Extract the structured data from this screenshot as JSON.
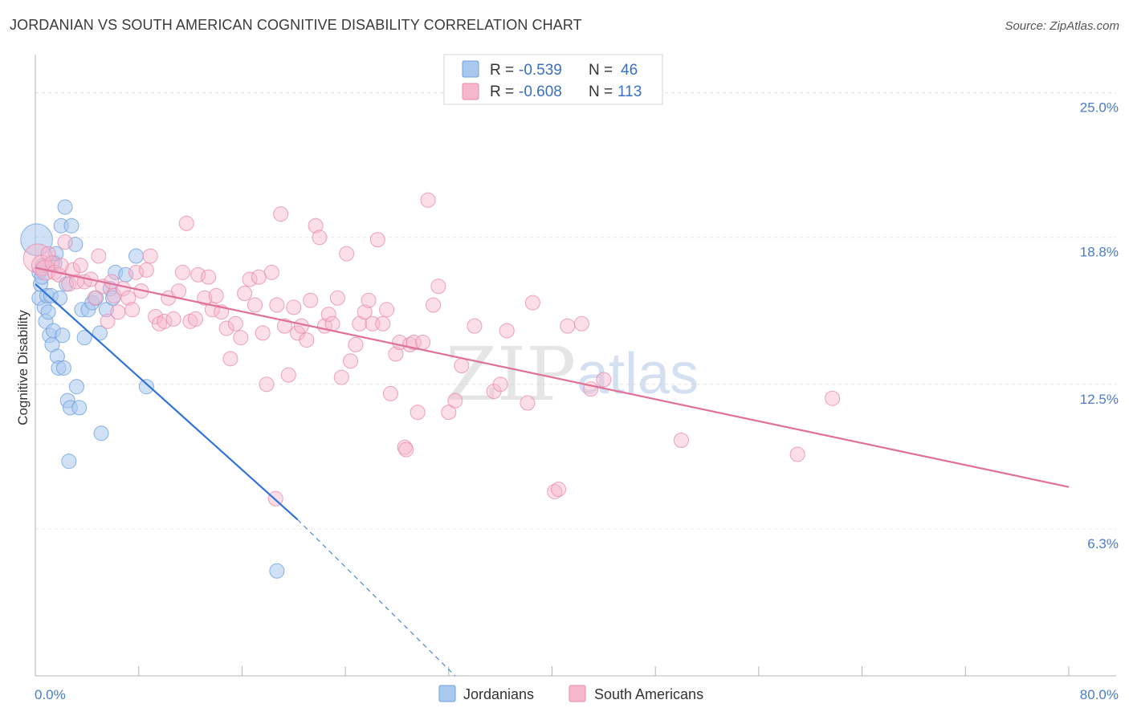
{
  "header": {
    "title": "JORDANIAN VS SOUTH AMERICAN COGNITIVE DISABILITY CORRELATION CHART",
    "source": "Source: ZipAtlas.com"
  },
  "legend": {
    "rows": [
      {
        "r_label": "R =",
        "r_value": "-0.539",
        "n_label": "N =",
        "n_value": "46",
        "color": "#a9c8ef"
      },
      {
        "r_label": "R =",
        "r_value": "-0.608",
        "n_label": "N =",
        "n_value": "113",
        "color": "#f6b6cb"
      }
    ]
  },
  "bottom_legend": {
    "items": [
      {
        "label": "Jordanians",
        "color": "#a9c8ef"
      },
      {
        "label": "South Americans",
        "color": "#f6b6cb"
      }
    ]
  },
  "watermark": {
    "zip": "ZIP",
    "atlas": "atlas"
  },
  "chart_data": {
    "type": "scatter",
    "ylabel": "Cognitive Disability",
    "xlim": [
      0,
      80
    ],
    "ylim": [
      0,
      26.5
    ],
    "x_tick_labels": [
      {
        "value": 0,
        "label": "0.0%"
      },
      {
        "value": 80,
        "label": "80.0%"
      }
    ],
    "y_tick_labels": [
      {
        "value": 6.3,
        "label": "6.3%"
      },
      {
        "value": 12.5,
        "label": "12.5%"
      },
      {
        "value": 18.8,
        "label": "18.8%"
      },
      {
        "value": 25.0,
        "label": "25.0%"
      }
    ],
    "grid": true,
    "legend_position": "top-center",
    "series": [
      {
        "name": "Jordanians",
        "color": "#a9c8ef",
        "stroke": "#6e9fdd",
        "trend": {
          "x0": 0,
          "y0": 16.8,
          "x1": 20.3,
          "y1": 6.7,
          "dash_to_x": 32.5,
          "dash_to_y": 0
        },
        "trend_color": "#2f72d8",
        "points": [
          [
            0.1,
            18.7
          ],
          [
            0.3,
            17.3
          ],
          [
            0.4,
            16.8
          ],
          [
            0.3,
            16.2
          ],
          [
            0.6,
            17.6
          ],
          [
            0.7,
            15.8
          ],
          [
            0.8,
            15.2
          ],
          [
            0.9,
            16.3
          ],
          [
            1.0,
            15.6
          ],
          [
            1.1,
            14.6
          ],
          [
            1.2,
            16.3
          ],
          [
            1.3,
            14.2
          ],
          [
            1.4,
            14.8
          ],
          [
            1.5,
            17.7
          ],
          [
            1.6,
            18.1
          ],
          [
            1.7,
            13.7
          ],
          [
            1.8,
            13.2
          ],
          [
            1.9,
            16.2
          ],
          [
            2.0,
            19.3
          ],
          [
            2.1,
            14.6
          ],
          [
            2.2,
            13.2
          ],
          [
            2.3,
            20.1
          ],
          [
            2.4,
            16.8
          ],
          [
            2.5,
            11.8
          ],
          [
            2.6,
            9.2
          ],
          [
            2.7,
            11.5
          ],
          [
            2.8,
            19.3
          ],
          [
            3.1,
            18.5
          ],
          [
            3.2,
            12.4
          ],
          [
            3.4,
            11.5
          ],
          [
            3.6,
            15.7
          ],
          [
            3.8,
            14.5
          ],
          [
            4.1,
            15.7
          ],
          [
            4.4,
            16.0
          ],
          [
            4.7,
            16.2
          ],
          [
            5.0,
            14.7
          ],
          [
            5.1,
            10.4
          ],
          [
            5.5,
            15.7
          ],
          [
            5.8,
            16.6
          ],
          [
            6.0,
            16.2
          ],
          [
            6.2,
            17.3
          ],
          [
            7.0,
            17.2
          ],
          [
            7.8,
            18.0
          ],
          [
            8.6,
            12.4
          ],
          [
            18.7,
            4.5
          ],
          [
            0.5,
            17.1
          ]
        ],
        "sizes": [
          2.2,
          1,
          1,
          1,
          1,
          1,
          1,
          1,
          1,
          1,
          1,
          1,
          1,
          1,
          1,
          1,
          1,
          1,
          1,
          1,
          1,
          1,
          1,
          1,
          1,
          1,
          1,
          1,
          1,
          1,
          1,
          1,
          1,
          1,
          1,
          1,
          1,
          1,
          1,
          1,
          1,
          1,
          1,
          1,
          1,
          1
        ]
      },
      {
        "name": "South Americans",
        "color": "#f6b6cb",
        "stroke": "#e98bab",
        "trend": {
          "x0": 0,
          "y0": 17.5,
          "x1": 80,
          "y1": 8.1
        },
        "trend_color": "#e0709a",
        "points": [
          [
            0.2,
            17.9
          ],
          [
            0.5,
            17.6
          ],
          [
            0.8,
            17.4
          ],
          [
            1.0,
            18.1
          ],
          [
            1.3,
            17.7
          ],
          [
            1.5,
            17.3
          ],
          [
            1.8,
            17.2
          ],
          [
            2.0,
            17.6
          ],
          [
            2.3,
            18.6
          ],
          [
            2.6,
            16.8
          ],
          [
            2.9,
            17.4
          ],
          [
            3.2,
            16.9
          ],
          [
            3.5,
            17.6
          ],
          [
            3.8,
            16.9
          ],
          [
            4.3,
            17.0
          ],
          [
            4.6,
            16.2
          ],
          [
            4.9,
            18.0
          ],
          [
            5.2,
            16.7
          ],
          [
            5.6,
            15.2
          ],
          [
            5.9,
            16.9
          ],
          [
            6.1,
            16.3
          ],
          [
            6.4,
            15.6
          ],
          [
            6.8,
            16.6
          ],
          [
            7.2,
            16.2
          ],
          [
            7.5,
            15.7
          ],
          [
            7.8,
            17.3
          ],
          [
            8.2,
            16.5
          ],
          [
            8.6,
            17.4
          ],
          [
            8.9,
            18.0
          ],
          [
            9.3,
            15.4
          ],
          [
            9.6,
            15.1
          ],
          [
            10.0,
            15.2
          ],
          [
            10.3,
            16.2
          ],
          [
            10.7,
            15.3
          ],
          [
            11.1,
            16.5
          ],
          [
            11.4,
            17.3
          ],
          [
            11.7,
            19.4
          ],
          [
            12.0,
            15.2
          ],
          [
            12.4,
            15.3
          ],
          [
            12.6,
            17.2
          ],
          [
            13.1,
            16.2
          ],
          [
            13.4,
            17.1
          ],
          [
            13.7,
            15.7
          ],
          [
            14.0,
            16.3
          ],
          [
            14.4,
            15.6
          ],
          [
            14.8,
            14.9
          ],
          [
            15.1,
            13.6
          ],
          [
            15.5,
            15.1
          ],
          [
            15.9,
            14.5
          ],
          [
            16.2,
            16.4
          ],
          [
            16.6,
            17.0
          ],
          [
            17.0,
            15.9
          ],
          [
            17.3,
            17.1
          ],
          [
            17.6,
            14.7
          ],
          [
            17.9,
            12.5
          ],
          [
            18.3,
            17.3
          ],
          [
            18.7,
            15.9
          ],
          [
            19.0,
            19.8
          ],
          [
            19.3,
            15.0
          ],
          [
            19.6,
            12.9
          ],
          [
            20.0,
            15.8
          ],
          [
            20.3,
            14.7
          ],
          [
            20.6,
            15.0
          ],
          [
            21.0,
            14.4
          ],
          [
            21.3,
            16.1
          ],
          [
            21.7,
            19.3
          ],
          [
            22.0,
            18.8
          ],
          [
            22.4,
            15.0
          ],
          [
            22.7,
            15.5
          ],
          [
            23.0,
            15.1
          ],
          [
            23.4,
            16.2
          ],
          [
            23.7,
            12.8
          ],
          [
            24.1,
            18.1
          ],
          [
            24.4,
            13.5
          ],
          [
            24.8,
            14.2
          ],
          [
            25.1,
            15.1
          ],
          [
            25.5,
            15.6
          ],
          [
            25.8,
            16.1
          ],
          [
            26.1,
            15.1
          ],
          [
            26.5,
            18.7
          ],
          [
            26.9,
            15.1
          ],
          [
            27.2,
            15.7
          ],
          [
            27.5,
            12.1
          ],
          [
            27.9,
            13.8
          ],
          [
            28.2,
            14.3
          ],
          [
            28.6,
            9.8
          ],
          [
            28.7,
            9.7
          ],
          [
            29.0,
            14.2
          ],
          [
            29.3,
            14.3
          ],
          [
            29.6,
            11.3
          ],
          [
            30.0,
            14.3
          ],
          [
            30.4,
            20.4
          ],
          [
            30.8,
            15.9
          ],
          [
            31.2,
            16.7
          ],
          [
            32.0,
            11.3
          ],
          [
            32.5,
            11.8
          ],
          [
            35.5,
            12.2
          ],
          [
            36.0,
            12.5
          ],
          [
            38.1,
            11.7
          ],
          [
            38.5,
            16.0
          ],
          [
            40.2,
            7.9
          ],
          [
            40.5,
            8.0
          ],
          [
            41.2,
            15.0
          ],
          [
            42.3,
            15.1
          ],
          [
            43.0,
            12.3
          ],
          [
            44.0,
            12.7
          ],
          [
            50.0,
            10.1
          ],
          [
            59.0,
            9.5
          ],
          [
            61.7,
            11.9
          ],
          [
            34.0,
            15.0
          ],
          [
            36.5,
            14.8
          ],
          [
            18.6,
            7.6
          ],
          [
            33.0,
            13.3
          ]
        ],
        "sizes": [
          2.0,
          1.4,
          1.4,
          1,
          1,
          1,
          1,
          1,
          1,
          1,
          1,
          1,
          1,
          1,
          1,
          1,
          1,
          1,
          1,
          1,
          1,
          1,
          1,
          1,
          1,
          1,
          1,
          1,
          1,
          1,
          1,
          1,
          1,
          1,
          1,
          1,
          1,
          1,
          1,
          1,
          1,
          1,
          1,
          1,
          1,
          1,
          1,
          1,
          1,
          1,
          1,
          1,
          1,
          1,
          1,
          1,
          1,
          1,
          1,
          1,
          1,
          1,
          1,
          1,
          1,
          1,
          1,
          1,
          1,
          1,
          1,
          1,
          1,
          1,
          1,
          1,
          1,
          1,
          1,
          1,
          1,
          1,
          1,
          1,
          1,
          1,
          1,
          1,
          1,
          1,
          1,
          1,
          1,
          1,
          1,
          1,
          1,
          1,
          1,
          1,
          1,
          1,
          1,
          1,
          1,
          1,
          1,
          1,
          1,
          1,
          1,
          1,
          1
        ]
      }
    ]
  }
}
